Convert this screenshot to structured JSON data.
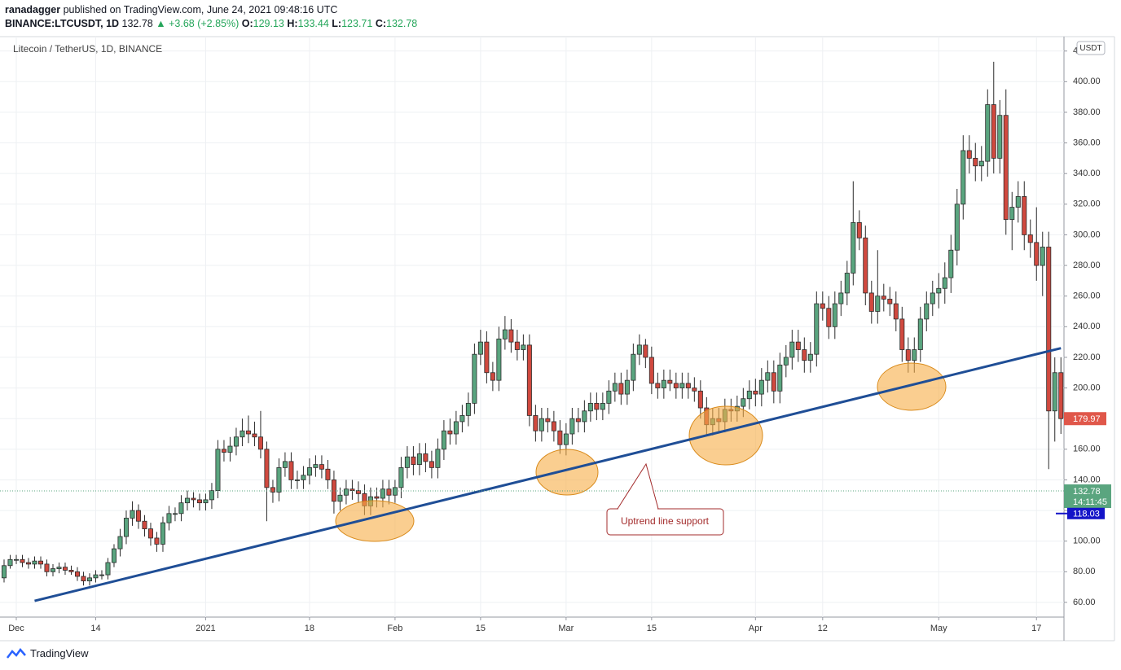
{
  "header": {
    "author": "ranadagger",
    "published": "published on TradingView.com, June 24, 2021 09:48:16 UTC",
    "symbol": "BINANCE:LTCUSDT, 1D",
    "last": "132.78",
    "change": "▲ +3.68 (+2.85%)",
    "ohlc": [
      {
        "key": "O:",
        "value": "129.13"
      },
      {
        "key": "H:",
        "value": "133.44"
      },
      {
        "key": "L:",
        "value": "123.71"
      },
      {
        "key": "C:",
        "value": "132.78"
      }
    ]
  },
  "footer": "TradingView",
  "chart_data": {
    "type": "candlestick",
    "title": "Litecoin / TetherUS, 1D, BINANCE",
    "currency": "USDT",
    "up_color": "#5aa57f",
    "down_color": "#d0493f",
    "border_color": "#2b2b2b",
    "grid": true,
    "ylim": [
      50.4,
      429.4
    ],
    "yticks": [
      {
        "value": 60,
        "label": "60.00"
      },
      {
        "value": 80,
        "label": "80.00"
      },
      {
        "value": 100,
        "label": "100.00"
      },
      {
        "value": 120,
        "label": "120.00"
      },
      {
        "value": 140,
        "label": "140.00"
      },
      {
        "value": 160,
        "label": "160.00"
      },
      {
        "value": 180,
        "label": "180.00"
      },
      {
        "value": 200,
        "label": "200.00"
      },
      {
        "value": 220,
        "label": "220.00"
      },
      {
        "value": 240,
        "label": "240.00"
      },
      {
        "value": 260,
        "label": "260.00"
      },
      {
        "value": 280,
        "label": "280.00"
      },
      {
        "value": 300,
        "label": "300.00"
      },
      {
        "value": 320,
        "label": "320.00"
      },
      {
        "value": 340,
        "label": "340.00"
      },
      {
        "value": 360,
        "label": "360.00"
      },
      {
        "value": 380,
        "label": "380.00"
      },
      {
        "value": 400,
        "label": "400.00"
      },
      {
        "value": 420,
        "label": "420.00"
      }
    ],
    "xlim": [
      "2020-11-28T08:00:00Z",
      "2021-05-21T12:00:00Z"
    ],
    "xticks": [
      {
        "value": "2020-12-01",
        "label": "Dec"
      },
      {
        "value": "2020-12-14",
        "label": "14"
      },
      {
        "value": "2021-01-01",
        "label": "2021"
      },
      {
        "value": "2021-01-18",
        "label": "18"
      },
      {
        "value": "2021-02-01",
        "label": "Feb"
      },
      {
        "value": "2021-02-15",
        "label": "15"
      },
      {
        "value": "2021-03-01",
        "label": "Mar"
      },
      {
        "value": "2021-03-15",
        "label": "15"
      },
      {
        "value": "2021-04-01",
        "label": "Apr"
      },
      {
        "value": "2021-04-12",
        "label": "12"
      },
      {
        "value": "2021-05-01",
        "label": "May"
      },
      {
        "value": "2021-05-17",
        "label": "17"
      }
    ],
    "x": [
      "2020-11-29",
      "2020-11-30",
      "2020-12-01",
      "2020-12-02",
      "2020-12-03",
      "2020-12-04",
      "2020-12-05",
      "2020-12-06",
      "2020-12-07",
      "2020-12-08",
      "2020-12-09",
      "2020-12-10",
      "2020-12-11",
      "2020-12-12",
      "2020-12-13",
      "2020-12-14",
      "2020-12-15",
      "2020-12-16",
      "2020-12-17",
      "2020-12-18",
      "2020-12-19",
      "2020-12-20",
      "2020-12-21",
      "2020-12-22",
      "2020-12-23",
      "2020-12-24",
      "2020-12-25",
      "2020-12-26",
      "2020-12-27",
      "2020-12-28",
      "2020-12-29",
      "2020-12-30",
      "2020-12-31",
      "2021-01-01",
      "2021-01-02",
      "2021-01-03",
      "2021-01-04",
      "2021-01-05",
      "2021-01-06",
      "2021-01-07",
      "2021-01-08",
      "2021-01-09",
      "2021-01-10",
      "2021-01-11",
      "2021-01-12",
      "2021-01-13",
      "2021-01-14",
      "2021-01-15",
      "2021-01-16",
      "2021-01-17",
      "2021-01-18",
      "2021-01-19",
      "2021-01-20",
      "2021-01-21",
      "2021-01-22",
      "2021-01-23",
      "2021-01-24",
      "2021-01-25",
      "2021-01-26",
      "2021-01-27",
      "2021-01-28",
      "2021-01-29",
      "2021-01-30",
      "2021-01-31",
      "2021-02-01",
      "2021-02-02",
      "2021-02-03",
      "2021-02-04",
      "2021-02-05",
      "2021-02-06",
      "2021-02-07",
      "2021-02-08",
      "2021-02-09",
      "2021-02-10",
      "2021-02-11",
      "2021-02-12",
      "2021-02-13",
      "2021-02-14",
      "2021-02-15",
      "2021-02-16",
      "2021-02-17",
      "2021-02-18",
      "2021-02-19",
      "2021-02-20",
      "2021-02-21",
      "2021-02-22",
      "2021-02-23",
      "2021-02-24",
      "2021-02-25",
      "2021-02-26",
      "2021-02-27",
      "2021-02-28",
      "2021-03-01",
      "2021-03-02",
      "2021-03-03",
      "2021-03-04",
      "2021-03-05",
      "2021-03-06",
      "2021-03-07",
      "2021-03-08",
      "2021-03-09",
      "2021-03-10",
      "2021-03-11",
      "2021-03-12",
      "2021-03-13",
      "2021-03-14",
      "2021-03-15",
      "2021-03-16",
      "2021-03-17",
      "2021-03-18",
      "2021-03-19",
      "2021-03-20",
      "2021-03-21",
      "2021-03-22",
      "2021-03-23",
      "2021-03-24",
      "2021-03-25",
      "2021-03-26",
      "2021-03-27",
      "2021-03-28",
      "2021-03-29",
      "2021-03-30",
      "2021-03-31",
      "2021-04-01",
      "2021-04-02",
      "2021-04-03",
      "2021-04-04",
      "2021-04-05",
      "2021-04-06",
      "2021-04-07",
      "2021-04-08",
      "2021-04-09",
      "2021-04-10",
      "2021-04-11",
      "2021-04-12",
      "2021-04-13",
      "2021-04-14",
      "2021-04-15",
      "2021-04-16",
      "2021-04-17",
      "2021-04-18",
      "2021-04-19",
      "2021-04-20",
      "2021-04-21",
      "2021-04-22",
      "2021-04-23",
      "2021-04-24",
      "2021-04-25",
      "2021-04-26",
      "2021-04-27",
      "2021-04-28",
      "2021-04-29",
      "2021-04-30",
      "2021-05-01",
      "2021-05-02",
      "2021-05-03",
      "2021-05-04",
      "2021-05-05",
      "2021-05-06",
      "2021-05-07",
      "2021-05-08",
      "2021-05-09",
      "2021-05-10",
      "2021-05-11",
      "2021-05-12",
      "2021-05-13",
      "2021-05-14",
      "2021-05-15",
      "2021-05-16",
      "2021-05-17",
      "2021-05-18",
      "2021-05-19",
      "2021-05-20",
      "2021-05-21"
    ],
    "open": [
      76,
      84,
      88,
      88,
      86,
      85,
      87,
      85,
      80,
      82,
      83,
      81,
      80,
      77,
      74,
      76,
      78,
      78,
      86,
      95,
      103,
      115,
      120,
      113,
      108,
      102,
      98,
      112,
      118,
      118,
      125,
      128,
      127,
      125,
      127,
      133,
      160,
      158,
      162,
      168,
      172,
      170,
      168,
      160,
      135,
      132,
      148,
      152,
      140,
      140,
      143,
      148,
      150,
      147,
      140,
      126,
      130,
      134,
      133,
      131,
      123,
      129,
      128,
      134,
      130,
      135,
      148,
      155,
      150,
      157,
      152,
      148,
      160,
      172,
      170,
      178,
      182,
      190,
      222,
      230,
      210,
      205,
      232,
      238,
      230,
      225,
      228,
      182,
      172,
      180,
      178,
      172,
      163,
      170,
      180,
      178,
      185,
      190,
      186,
      190,
      198,
      203,
      196,
      205,
      222,
      228,
      220,
      203,
      200,
      205,
      203,
      200,
      203,
      200,
      198,
      187,
      176,
      180,
      178,
      186,
      185,
      188,
      193,
      198,
      196,
      205,
      210,
      198,
      215,
      220,
      230,
      225,
      218,
      222,
      255,
      252,
      240,
      255,
      262,
      275,
      308,
      298,
      262,
      250,
      260,
      258,
      255,
      245,
      225,
      218,
      225,
      245,
      255,
      262,
      265,
      272,
      290,
      320,
      355,
      350,
      345,
      348,
      385,
      350,
      378,
      310,
      318,
      325,
      300,
      295,
      280,
      292,
      185,
      210
    ],
    "high": [
      88,
      91,
      91,
      91,
      89,
      90,
      90,
      88,
      85,
      86,
      86,
      84,
      83,
      80,
      79,
      81,
      81,
      89,
      98,
      108,
      120,
      126,
      124,
      117,
      112,
      106,
      116,
      123,
      122,
      130,
      133,
      132,
      131,
      131,
      138,
      166,
      166,
      168,
      174,
      180,
      182,
      178,
      185,
      165,
      140,
      154,
      158,
      158,
      146,
      149,
      154,
      156,
      156,
      153,
      146,
      135,
      140,
      140,
      139,
      137,
      135,
      135,
      140,
      140,
      140,
      155,
      162,
      162,
      164,
      164,
      159,
      167,
      179,
      180,
      185,
      189,
      197,
      229,
      238,
      237,
      217,
      240,
      247,
      245,
      238,
      235,
      235,
      189,
      187,
      187,
      185,
      179,
      177,
      187,
      187,
      192,
      197,
      197,
      197,
      205,
      210,
      210,
      212,
      229,
      235,
      232,
      227,
      210,
      212,
      212,
      210,
      210,
      210,
      207,
      205,
      194,
      187,
      187,
      193,
      193,
      195,
      200,
      205,
      206,
      213,
      218,
      218,
      223,
      228,
      238,
      238,
      233,
      230,
      263,
      263,
      260,
      263,
      270,
      283,
      335,
      316,
      306,
      270,
      290,
      268,
      266,
      263,
      253,
      233,
      233,
      253,
      263,
      270,
      275,
      282,
      300,
      330,
      365,
      365,
      360,
      358,
      395,
      413,
      388,
      395,
      328,
      335,
      335,
      310,
      318,
      302,
      302,
      220,
      220
    ],
    "low": [
      73,
      82,
      85,
      83,
      82,
      82,
      82,
      77,
      77,
      79,
      78,
      78,
      74,
      71,
      71,
      73,
      75,
      75,
      83,
      90,
      98,
      110,
      108,
      103,
      97,
      93,
      93,
      107,
      113,
      113,
      120,
      122,
      120,
      120,
      121,
      128,
      152,
      152,
      156,
      162,
      164,
      162,
      154,
      113,
      125,
      126,
      142,
      134,
      134,
      134,
      137,
      142,
      141,
      134,
      118,
      120,
      124,
      127,
      125,
      117,
      117,
      122,
      122,
      124,
      125,
      128,
      141,
      143,
      143,
      145,
      141,
      141,
      153,
      163,
      163,
      171,
      175,
      183,
      215,
      203,
      198,
      198,
      225,
      223,
      218,
      218,
      175,
      165,
      165,
      171,
      165,
      157,
      156,
      163,
      171,
      171,
      178,
      179,
      179,
      183,
      191,
      189,
      189,
      198,
      215,
      213,
      196,
      193,
      193,
      198,
      193,
      193,
      193,
      191,
      180,
      169,
      169,
      171,
      171,
      178,
      178,
      181,
      186,
      188,
      188,
      197,
      190,
      190,
      207,
      212,
      217,
      210,
      210,
      214,
      244,
      232,
      232,
      247,
      254,
      267,
      290,
      254,
      242,
      242,
      250,
      247,
      237,
      217,
      210,
      210,
      217,
      237,
      247,
      252,
      255,
      262,
      280,
      310,
      340,
      335,
      335,
      338,
      340,
      340,
      300,
      290,
      308,
      290,
      285,
      270,
      260,
      147,
      165,
      170
    ],
    "close": [
      84,
      88,
      88,
      86,
      85,
      87,
      85,
      80,
      82,
      83,
      81,
      80,
      77,
      74,
      76,
      78,
      78,
      86,
      95,
      103,
      115,
      120,
      113,
      108,
      102,
      98,
      112,
      118,
      118,
      125,
      128,
      127,
      125,
      127,
      133,
      160,
      158,
      162,
      168,
      172,
      170,
      168,
      160,
      135,
      132,
      148,
      152,
      140,
      140,
      143,
      148,
      150,
      147,
      140,
      126,
      130,
      134,
      133,
      131,
      123,
      129,
      128,
      134,
      130,
      135,
      148,
      155,
      150,
      157,
      152,
      148,
      160,
      172,
      170,
      178,
      182,
      190,
      222,
      230,
      210,
      205,
      232,
      238,
      230,
      225,
      228,
      182,
      172,
      180,
      178,
      172,
      163,
      170,
      180,
      178,
      185,
      190,
      186,
      190,
      198,
      203,
      196,
      205,
      222,
      228,
      220,
      203,
      200,
      205,
      203,
      200,
      203,
      200,
      198,
      187,
      176,
      180,
      178,
      186,
      185,
      188,
      193,
      198,
      196,
      205,
      210,
      198,
      215,
      220,
      230,
      225,
      218,
      222,
      255,
      252,
      240,
      255,
      262,
      275,
      308,
      298,
      262,
      250,
      260,
      258,
      255,
      245,
      225,
      218,
      225,
      245,
      255,
      262,
      265,
      272,
      290,
      320,
      355,
      350,
      345,
      348,
      385,
      350,
      378,
      310,
      318,
      325,
      300,
      295,
      280,
      292,
      185,
      210,
      179.97
    ],
    "trend_line": {
      "x": [
        "2020-12-04",
        "2021-05-21"
      ],
      "y": [
        61,
        226
      ],
      "color": "#1f4e96"
    },
    "price_markers": [
      {
        "value": 179.97,
        "color": "#e0574a"
      },
      {
        "value": 132.78,
        "time": "14:11:45",
        "color": "#5aa57f"
      },
      {
        "value": 118.03,
        "color": "#1414c8"
      }
    ],
    "annotation": "Uptrend line support"
  }
}
